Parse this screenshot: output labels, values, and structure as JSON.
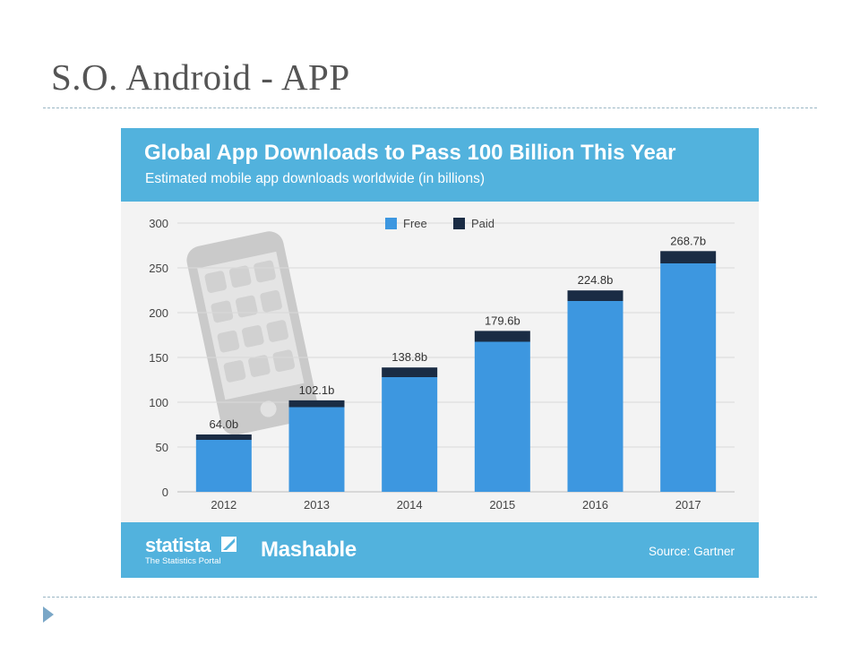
{
  "slide": {
    "title": "S.O. Android - APP"
  },
  "colors": {
    "header_bg": "#52b2dd",
    "free": "#3d97e0",
    "paid": "#1a2c44",
    "chart_bg": "#f3f3f3"
  },
  "footer": {
    "brand_logo": "statista",
    "brand_tagline": "The Statistics Portal",
    "partner_logo": "Mashable",
    "source": "Source: Gartner"
  },
  "chart_data": {
    "type": "bar",
    "stacked": true,
    "title": "Global App Downloads to Pass 100 Billion This Year",
    "subtitle": "Estimated mobile app downloads worldwide (in billions)",
    "categories": [
      "2012",
      "2013",
      "2014",
      "2015",
      "2016",
      "2017"
    ],
    "series": [
      {
        "name": "Free",
        "values": [
          58.0,
          94.5,
          128.0,
          167.5,
          213.0,
          255.0
        ]
      },
      {
        "name": "Paid",
        "values": [
          6.0,
          7.6,
          10.8,
          12.1,
          11.8,
          13.7
        ]
      }
    ],
    "totals": [
      64.0,
      102.1,
      138.8,
      179.6,
      224.8,
      268.7
    ],
    "data_labels": [
      "64.0b",
      "102.1b",
      "138.8b",
      "179.6b",
      "224.8b",
      "268.7b"
    ],
    "ylim": [
      0,
      300
    ],
    "yticks": [
      0,
      50,
      100,
      150,
      200,
      250,
      300
    ],
    "xlabel": "",
    "ylabel": "",
    "grid": true,
    "legend_position": "top-center"
  }
}
